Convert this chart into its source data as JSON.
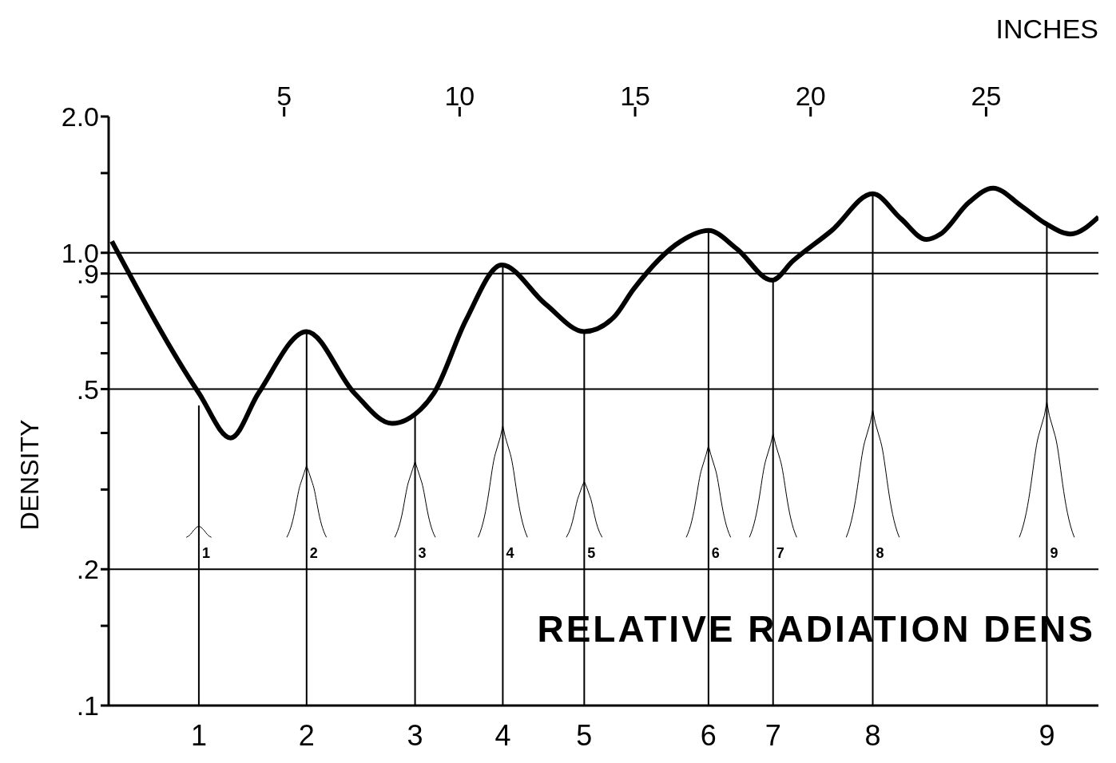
{
  "chart_data": {
    "type": "line",
    "ylabel": "DENSITY",
    "xlabel": "INCHES",
    "log": "y",
    "marker": "none",
    "line_style": "solid",
    "xlim": [
      0,
      28.2
    ],
    "xticks": [
      5,
      10,
      15,
      20,
      25
    ],
    "ylim": [
      0.1,
      2.0
    ],
    "yticks": [
      {
        "value": 0.1,
        "label": ".1"
      },
      {
        "value": 0.15,
        "label": null
      },
      {
        "value": 0.2,
        "label": ".2"
      },
      {
        "value": 0.3,
        "label": null
      },
      {
        "value": 0.4,
        "label": null
      },
      {
        "value": 0.5,
        "label": ".5"
      },
      {
        "value": 0.6,
        "label": null
      },
      {
        "value": 0.7,
        "label": null
      },
      {
        "value": 0.8,
        "label": null
      },
      {
        "value": 0.9,
        "label": ".9"
      },
      {
        "value": 1.0,
        "label": "1.0"
      },
      {
        "value": 1.5,
        "label": null
      },
      {
        "value": 2.0,
        "label": "2.0"
      }
    ],
    "series": [
      {
        "color": "#000000",
        "x": [
          0.09,
          2.57,
          3.48,
          4.27,
          5.64,
          7.0,
          8.07,
          8.73,
          9.27,
          10.18,
          11.2,
          12.45,
          13.55,
          14.39,
          14.95,
          16.3,
          17.09,
          17.9,
          18.9,
          19.5,
          20.6,
          21.77,
          22.57,
          23.3,
          23.7,
          24.5,
          25.2,
          26.0,
          26.7,
          27.4,
          28.2
        ],
        "values": [
          1.06,
          0.49,
          0.39,
          0.49,
          0.67,
          0.49,
          0.42,
          0.44,
          0.49,
          0.71,
          0.94,
          0.77,
          0.67,
          0.72,
          0.83,
          1.06,
          1.12,
          1.02,
          0.87,
          0.96,
          1.12,
          1.35,
          1.19,
          1.07,
          1.1,
          1.29,
          1.39,
          1.27,
          1.16,
          1.1,
          1.2
        ]
      },
      {
        "type": "bar",
        "color": "#000000",
        "x": [
          2.57,
          5.64,
          8.73,
          11.23,
          13.55,
          17.09,
          18.93,
          21.77,
          26.73
        ],
        "values": [
          0.46,
          0.67,
          0.44,
          0.94,
          0.67,
          1.12,
          0.87,
          1.35,
          1.16
        ]
      }
    ],
    "ref_lines": [
      {
        "axis": "y",
        "value": 1.0
      },
      {
        "axis": "y",
        "value": 0.9
      },
      {
        "axis": "y",
        "value": 0.5
      },
      {
        "axis": "y",
        "value": 0.2
      }
    ],
    "annotations": [
      "RELATIVE RADIATION DENS",
      "1",
      "2",
      "3",
      "4",
      "5",
      "6",
      "7",
      "8",
      "9",
      "1",
      "2",
      "3",
      "4",
      "5",
      "6",
      "7",
      "8",
      "9"
    ]
  }
}
